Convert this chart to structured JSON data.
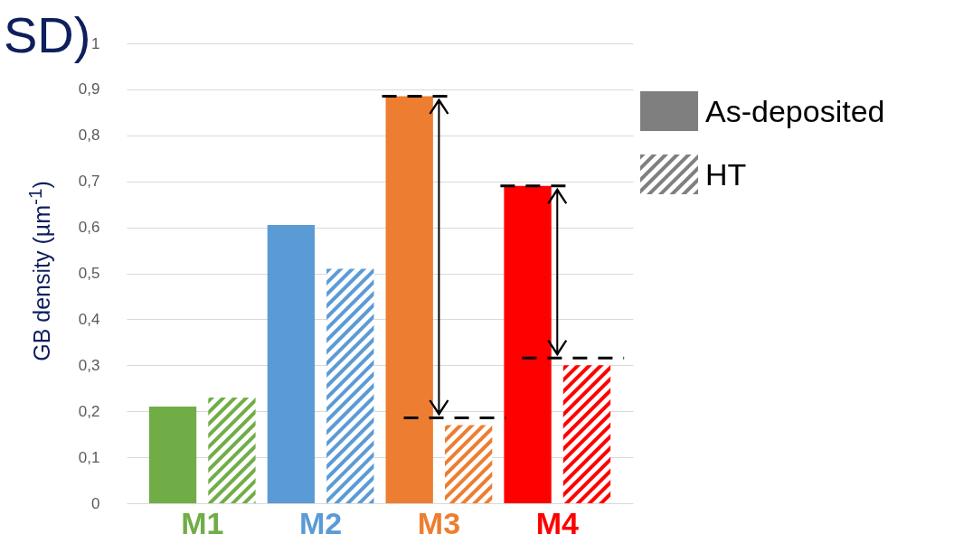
{
  "chart_data": {
    "type": "bar",
    "title": "SD)",
    "ylabel": "GB density (µm$^{-1}$)",
    "categories": [
      "M1",
      "M2",
      "M3",
      "M4"
    ],
    "series": [
      {
        "name": "As-deposited",
        "color": "#7f7f7f",
        "colors": [
          "#70ad47",
          "#5b9bd5",
          "#ed7d31",
          "#ff0000"
        ],
        "values": [
          0.21,
          0.605,
          0.885,
          0.69
        ]
      },
      {
        "name": "HT",
        "color": "#7f7f7f",
        "colors": [
          "#70ad47",
          "#5b9bd5",
          "#ed7d31",
          "#ff0000"
        ],
        "values": [
          0.23,
          0.51,
          0.17,
          0.3
        ]
      }
    ],
    "ylim": [
      0,
      1
    ],
    "yticks": [
      0,
      {
        "value": 0.1,
        "label": "0,1"
      },
      {
        "value": 0.2,
        "label": "0,2"
      },
      {
        "value": 0.3,
        "label": "0,3"
      },
      {
        "value": 0.4,
        "label": "0,4"
      },
      {
        "value": 0.5,
        "label": "0,5"
      },
      {
        "value": 0.6,
        "label": "0,6"
      },
      {
        "value": 0.7,
        "label": "0,7"
      },
      {
        "value": 0.8,
        "label": "0,8"
      },
      {
        "value": 0.9,
        "label": "0,9"
      },
      1
    ],
    "grid": "y",
    "legend": "top right"
  }
}
